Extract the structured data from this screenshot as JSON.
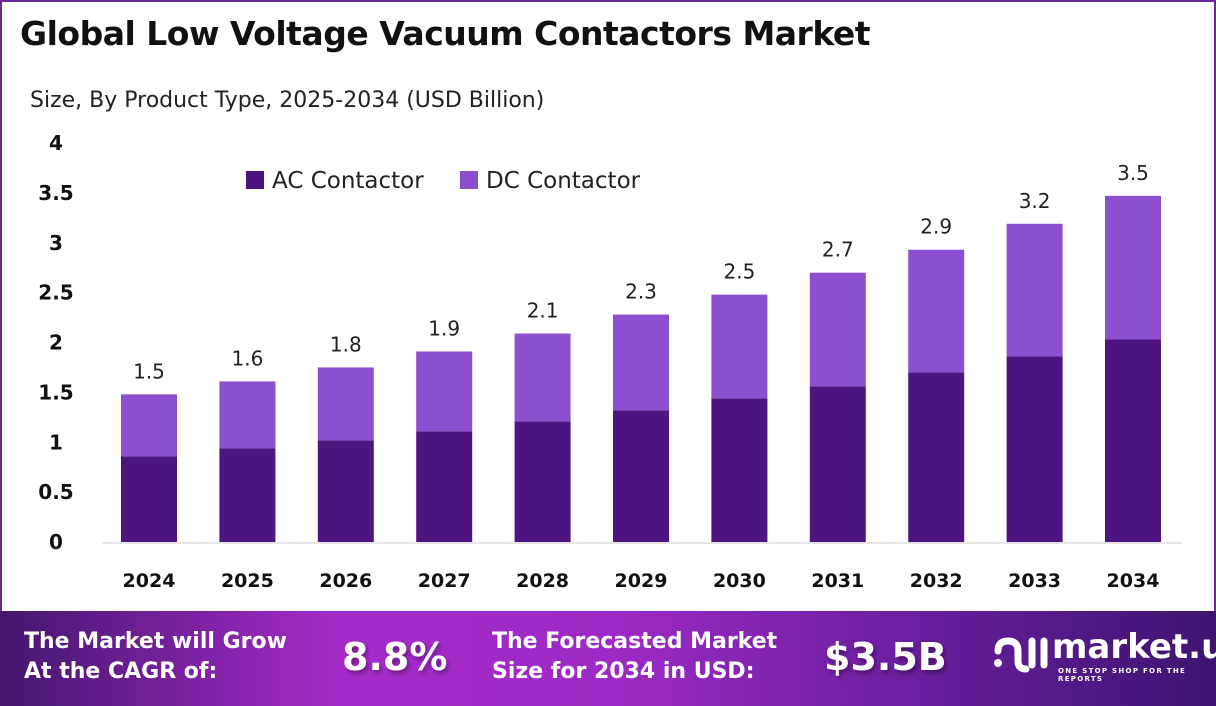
{
  "title": "Global Low Voltage Vacuum Contactors Market",
  "subtitle": "Size, By Product Type, 2025-2034 (USD Billion)",
  "chart_data": {
    "type": "bar",
    "stacked": true,
    "categories": [
      "2024",
      "2025",
      "2026",
      "2027",
      "2028",
      "2029",
      "2030",
      "2031",
      "2032",
      "2033",
      "2034"
    ],
    "series": [
      {
        "name": "AC Contactor",
        "color": "#4e1580",
        "values": [
          0.86,
          0.94,
          1.02,
          1.11,
          1.21,
          1.32,
          1.44,
          1.56,
          1.7,
          1.86,
          2.03
        ]
      },
      {
        "name": "DC Contactor",
        "color": "#8d4fd0",
        "values": [
          0.62,
          0.67,
          0.73,
          0.8,
          0.88,
          0.96,
          1.04,
          1.14,
          1.23,
          1.33,
          1.44
        ]
      }
    ],
    "totals_labels": [
      "1.5",
      "1.6",
      "1.8",
      "1.9",
      "2.1",
      "2.3",
      "2.5",
      "2.7",
      "2.9",
      "3.2",
      "3.5"
    ],
    "ylim": [
      0,
      4
    ],
    "yticks": [
      "0",
      "0.5",
      "1",
      "1.5",
      "2",
      "2.5",
      "3",
      "3.5",
      "4"
    ],
    "grid": false,
    "legend": "top-left"
  },
  "footer": {
    "cagr_label_line1": "The Market will Grow",
    "cagr_label_line2": "At the CAGR of:",
    "cagr_value": "8.8%",
    "forecast_label_line1": "The Forecasted Market",
    "forecast_label_line2": "Size for 2034 in USD:",
    "forecast_value": "$3.5B",
    "logo_text": "market.us",
    "logo_tagline": "ONE STOP SHOP FOR THE REPORTS"
  }
}
